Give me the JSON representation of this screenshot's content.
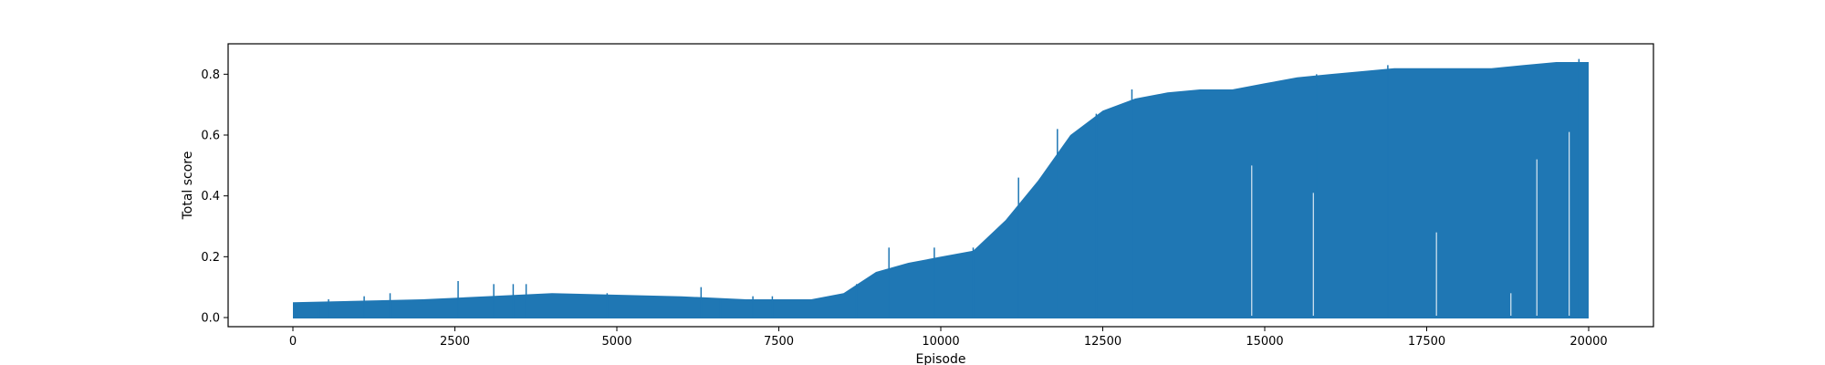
{
  "chart_data": {
    "type": "line",
    "title": "",
    "xlabel": "Episode",
    "ylabel": "Total score",
    "xlim": [
      -1000,
      21000
    ],
    "ylim": [
      -0.03,
      0.9
    ],
    "x_ticks": [
      0,
      2500,
      5000,
      7500,
      10000,
      12500,
      15000,
      17500,
      20000
    ],
    "y_ticks": [
      0.0,
      0.2,
      0.4,
      0.6,
      0.8
    ],
    "x_tick_labels": [
      "0",
      "2500",
      "5000",
      "7500",
      "10000",
      "12500",
      "15000",
      "17500",
      "20000"
    ],
    "y_tick_labels": [
      "0.0",
      "0.2",
      "0.4",
      "0.6",
      "0.8"
    ],
    "grid": false,
    "legend": "none",
    "series": [
      {
        "color": "#1f77b4",
        "x_range": [
          0,
          20000
        ],
        "baseline": 0.0,
        "envelope_x": [
          0,
          2000,
          4000,
          6000,
          7000,
          8000,
          8500,
          9000,
          9500,
          10000,
          10500,
          11000,
          11500,
          12000,
          12500,
          13000,
          13500,
          14000,
          14500,
          15000,
          15500,
          16000,
          16500,
          17000,
          17500,
          18000,
          18500,
          19000,
          19500,
          20000
        ],
        "envelope_y": [
          0.05,
          0.06,
          0.08,
          0.07,
          0.06,
          0.06,
          0.08,
          0.15,
          0.18,
          0.2,
          0.22,
          0.32,
          0.45,
          0.6,
          0.68,
          0.72,
          0.74,
          0.75,
          0.75,
          0.77,
          0.79,
          0.8,
          0.81,
          0.82,
          0.82,
          0.82,
          0.82,
          0.83,
          0.84,
          0.84
        ],
        "spikes": [
          {
            "x": 50,
            "y": 0.045
          },
          {
            "x": 400,
            "y": 0.045
          },
          {
            "x": 550,
            "y": 0.06
          },
          {
            "x": 1100,
            "y": 0.07
          },
          {
            "x": 1500,
            "y": 0.08
          },
          {
            "x": 2550,
            "y": 0.12
          },
          {
            "x": 3100,
            "y": 0.11
          },
          {
            "x": 3400,
            "y": 0.11
          },
          {
            "x": 3600,
            "y": 0.11
          },
          {
            "x": 4850,
            "y": 0.08
          },
          {
            "x": 6300,
            "y": 0.1
          },
          {
            "x": 6600,
            "y": 0.06
          },
          {
            "x": 7100,
            "y": 0.07
          },
          {
            "x": 7400,
            "y": 0.07
          },
          {
            "x": 8700,
            "y": 0.11
          },
          {
            "x": 9200,
            "y": 0.23
          },
          {
            "x": 9900,
            "y": 0.23
          },
          {
            "x": 10500,
            "y": 0.23
          },
          {
            "x": 11200,
            "y": 0.46
          },
          {
            "x": 11800,
            "y": 0.62
          },
          {
            "x": 12400,
            "y": 0.67
          },
          {
            "x": 12950,
            "y": 0.75
          },
          {
            "x": 15800,
            "y": 0.8
          },
          {
            "x": 16900,
            "y": 0.83
          },
          {
            "x": 19850,
            "y": 0.85
          }
        ],
        "notches": [
          {
            "x": 14800,
            "y": 0.5
          },
          {
            "x": 15750,
            "y": 0.41
          },
          {
            "x": 17650,
            "y": 0.28
          },
          {
            "x": 18800,
            "y": 0.08
          },
          {
            "x": 19200,
            "y": 0.52
          },
          {
            "x": 19700,
            "y": 0.61
          }
        ]
      }
    ]
  }
}
